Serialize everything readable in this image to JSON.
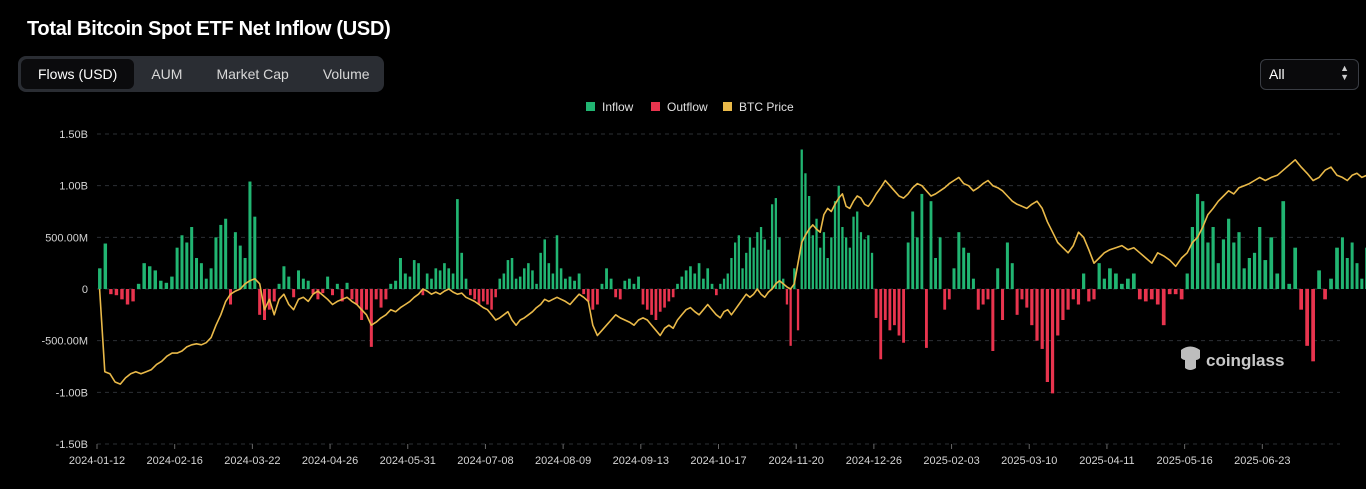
{
  "title": "Total Bitcoin Spot ETF Net Inflow (USD)",
  "tabs": [
    {
      "label": "Flows (USD)",
      "active": true
    },
    {
      "label": "AUM",
      "active": false
    },
    {
      "label": "Market Cap",
      "active": false
    },
    {
      "label": "Volume",
      "active": false
    }
  ],
  "range_select": {
    "value": "All",
    "icon": "updown-chevron-icon"
  },
  "watermark": {
    "text": "coinglass",
    "icon": "coinglass-logo-icon"
  },
  "colors": {
    "inflow": "#21b572",
    "outflow": "#e8344e",
    "btc_price": "#e9b949",
    "grid": "#2c2f35",
    "background": "#000000"
  },
  "chart_data": {
    "type": "bar",
    "title": "Total Bitcoin Spot ETF Net Inflow (USD)",
    "legend": [
      "Inflow",
      "Outflow",
      "BTC Price"
    ],
    "legend_position": "top-center",
    "grid": "horizontal dashed",
    "ylim": [
      -1.5,
      1.5
    ],
    "yunit": "B USD",
    "y_ticks": [
      "1.50B",
      "1.00B",
      "500.00M",
      "0",
      "-500.00M",
      "-1.00B",
      "-1.50B"
    ],
    "x_ticks": [
      "2024-01-12",
      "2024-02-16",
      "2024-03-22",
      "2024-04-26",
      "2024-05-31",
      "2024-07-08",
      "2024-08-09",
      "2024-09-13",
      "2024-10-17",
      "2024-11-20",
      "2024-12-26",
      "2025-02-03",
      "2025-03-10",
      "2025-04-11",
      "2025-05-16",
      "2025-06-23"
    ],
    "flows_by_period": [
      [
        0.2,
        0.44,
        -0.05,
        -0.06,
        -0.1,
        -0.15,
        -0.12,
        0.05,
        0.25,
        0.22,
        0.18,
        0.08,
        0.06,
        0.12
      ],
      [
        0.4,
        0.52,
        0.45,
        0.6,
        0.3,
        0.25,
        0.1,
        0.2,
        0.5,
        0.62,
        0.68,
        -0.15,
        0.55,
        0.42,
        0.3,
        1.04
      ],
      [
        0.7,
        -0.25,
        -0.3,
        -0.2,
        -0.12,
        0.05,
        0.22,
        0.12,
        -0.08,
        0.18,
        0.1,
        0.08,
        -0.05,
        -0.1,
        -0.04,
        0.12
      ],
      [
        -0.06,
        0.05,
        -0.12,
        0.06,
        -0.1,
        -0.15,
        -0.3,
        -0.2,
        -0.56,
        -0.1,
        -0.18,
        -0.1,
        0.05,
        0.08,
        0.3,
        0.15
      ],
      [
        0.12,
        0.28,
        0.25,
        -0.06,
        0.15,
        0.1,
        0.2,
        0.18,
        0.25,
        0.2,
        0.15,
        0.87,
        0.35,
        0.1,
        -0.06,
        -0.1,
        -0.15,
        -0.12
      ],
      [
        -0.15,
        -0.2,
        -0.08,
        0.1,
        0.15,
        0.28,
        0.3,
        0.1,
        0.12,
        0.2,
        0.25,
        0.18,
        0.05,
        0.35,
        0.48,
        0.25,
        0.15,
        0.52,
        0.2
      ],
      [
        0.1,
        0.12,
        0.08,
        0.15,
        -0.05,
        -0.12,
        -0.2,
        -0.15,
        0.05,
        0.2,
        0.1,
        -0.08,
        -0.1,
        0.08,
        0.1,
        0.05,
        0.12
      ],
      [
        -0.15,
        -0.2,
        -0.25,
        -0.3,
        -0.22,
        -0.18,
        -0.12,
        -0.08,
        0.05,
        0.12,
        0.18,
        0.22,
        0.15,
        0.25,
        0.1,
        0.2,
        0.05,
        -0.06
      ],
      [
        0.05,
        0.1,
        0.15,
        0.3,
        0.45,
        0.52,
        0.2,
        0.35,
        0.5,
        0.4,
        0.55,
        0.6,
        0.48,
        0.38,
        0.82,
        0.88,
        0.5,
        0.1,
        -0.15,
        -0.55,
        0.2
      ],
      [
        -0.4,
        1.35,
        1.12,
        0.9,
        0.52,
        0.68,
        0.4,
        0.55,
        0.3,
        0.5,
        0.85,
        1.0,
        0.6,
        0.5,
        0.4,
        0.7,
        0.75,
        0.55,
        0.48,
        0.52,
        0.35
      ],
      [
        -0.28,
        -0.68,
        -0.3,
        -0.4,
        -0.35,
        -0.45,
        -0.52,
        0.45,
        0.75,
        0.5,
        0.92,
        -0.57,
        0.85,
        0.3,
        0.5,
        -0.2,
        -0.1
      ],
      [
        0.2,
        0.55,
        0.4,
        0.35,
        0.1,
        -0.2,
        -0.15,
        -0.1,
        -0.6,
        0.2,
        -0.3,
        0.45,
        0.25,
        -0.25,
        -0.1,
        -0.18
      ],
      [
        -0.35,
        -0.5,
        -0.58,
        -0.9,
        -1.01,
        -0.45,
        -0.3,
        -0.2,
        -0.1,
        -0.15,
        0.15,
        -0.12,
        -0.1,
        0.25,
        0.1
      ],
      [
        0.2,
        0.15,
        0.05,
        0.1,
        0.15,
        -0.1,
        -0.12,
        -0.1,
        -0.15,
        -0.35,
        -0.05,
        -0.05,
        -0.1
      ],
      [
        0.15,
        0.6,
        0.92,
        0.85,
        0.45,
        0.6,
        0.25,
        0.48,
        0.68,
        0.45,
        0.55,
        0.2,
        0.3,
        0.35,
        0.6
      ],
      [
        0.28,
        0.5,
        0.15,
        0.85,
        0.05,
        0.4,
        -0.2,
        -0.55,
        -0.7,
        0.18,
        -0.1,
        0.1,
        0.4
      ],
      [
        0.5,
        0.3,
        0.45,
        0.25,
        0.1,
        0.4,
        0.55,
        0.3,
        0.2,
        0.3,
        0.4,
        -0.35,
        0.6,
        0.2,
        0.08,
        0.22
      ]
    ],
    "btc_price_by_period": [
      [
        0.0,
        -0.8,
        -0.82,
        -0.9,
        -0.92,
        -0.86,
        -0.82,
        -0.8,
        -0.82,
        -0.8,
        -0.78,
        -0.73,
        -0.7,
        -0.65,
        -0.62
      ],
      [
        -0.62,
        -0.6,
        -0.56,
        -0.54,
        -0.53,
        -0.54,
        -0.52,
        -0.47,
        -0.35,
        -0.25,
        -0.12,
        -0.05,
        -0.02,
        0.0,
        0.05,
        0.08
      ],
      [
        0.1,
        0.05,
        -0.2,
        -0.1,
        -0.25,
        -0.1,
        -0.05,
        -0.15,
        -0.2,
        -0.1,
        -0.08,
        -0.12,
        -0.05,
        -0.02,
        -0.06,
        -0.1
      ],
      [
        -0.15,
        -0.12,
        -0.1,
        -0.08,
        -0.12,
        -0.15,
        -0.2,
        -0.25,
        -0.35,
        -0.32,
        -0.28,
        -0.25,
        -0.2,
        -0.22,
        -0.18,
        -0.15
      ],
      [
        -0.12,
        -0.08,
        -0.05,
        0.0,
        -0.02,
        -0.05,
        -0.03,
        -0.05,
        -0.02,
        0.0,
        -0.03,
        -0.05,
        -0.04,
        -0.08,
        -0.1,
        -0.12,
        -0.15,
        -0.18
      ],
      [
        -0.2,
        -0.25,
        -0.3,
        -0.28,
        -0.25,
        -0.22,
        -0.3,
        -0.35,
        -0.3,
        -0.28,
        -0.25,
        -0.22,
        -0.18,
        -0.15,
        -0.1,
        -0.12,
        -0.1,
        -0.08,
        -0.1
      ],
      [
        -0.12,
        -0.15,
        -0.1,
        -0.05,
        -0.08,
        -0.12,
        -0.35,
        -0.45,
        -0.4,
        -0.35,
        -0.3,
        -0.25,
        -0.28,
        -0.3,
        -0.32,
        -0.35,
        -0.3
      ],
      [
        -0.28,
        -0.3,
        -0.35,
        -0.4,
        -0.45,
        -0.38,
        -0.35,
        -0.38,
        -0.3,
        -0.25,
        -0.2,
        -0.18,
        -0.22,
        -0.25,
        -0.2,
        -0.15,
        -0.2,
        -0.25
      ],
      [
        -0.28,
        -0.22,
        -0.2,
        -0.25,
        -0.2,
        -0.15,
        -0.1,
        -0.05,
        -0.08,
        -0.05,
        0.0,
        -0.05,
        -0.08,
        -0.03,
        0.0,
        0.05,
        0.08,
        0.05,
        0.02,
        0.0,
        0.05
      ],
      [
        0.25,
        0.45,
        0.52,
        0.58,
        0.62,
        0.58,
        0.55,
        0.72,
        0.78,
        0.75,
        0.82,
        0.88,
        0.92,
        0.8,
        0.78,
        0.85,
        0.9,
        0.88,
        0.82,
        0.8,
        0.85
      ],
      [
        0.92,
        0.98,
        1.05,
        1.0,
        0.95,
        0.9,
        0.88,
        0.92,
        0.98,
        1.02,
        1.0,
        0.95,
        0.9,
        0.92,
        0.95,
        0.98,
        1.02
      ],
      [
        1.05,
        1.08,
        1.02,
        1.0,
        0.95,
        0.98,
        1.02,
        1.05,
        1.0,
        0.98,
        0.95,
        0.9,
        0.85,
        0.82,
        0.8,
        0.78
      ],
      [
        0.82,
        0.85,
        0.78,
        0.65,
        0.55,
        0.45,
        0.4,
        0.35,
        0.42,
        0.55,
        0.5,
        0.38,
        0.25,
        0.3,
        0.35
      ],
      [
        0.38,
        0.4,
        0.42,
        0.38,
        0.4,
        0.35,
        0.3,
        0.25,
        0.35,
        0.32,
        0.28,
        0.22,
        0.3
      ],
      [
        0.35,
        0.45,
        0.5,
        0.6,
        0.72,
        0.78,
        0.85,
        0.9,
        0.95,
        0.92,
        0.98,
        1.0,
        1.02,
        1.05,
        1.08
      ],
      [
        1.05,
        1.08,
        1.1,
        1.15,
        1.2,
        1.25,
        1.18,
        1.12,
        1.05,
        1.08,
        1.15,
        1.18,
        1.1
      ],
      [
        1.08,
        1.05,
        1.1,
        1.12,
        1.08,
        1.1,
        1.15,
        1.12,
        1.1,
        1.12,
        1.18,
        1.15,
        1.12,
        1.16,
        1.2,
        1.24
      ]
    ]
  }
}
